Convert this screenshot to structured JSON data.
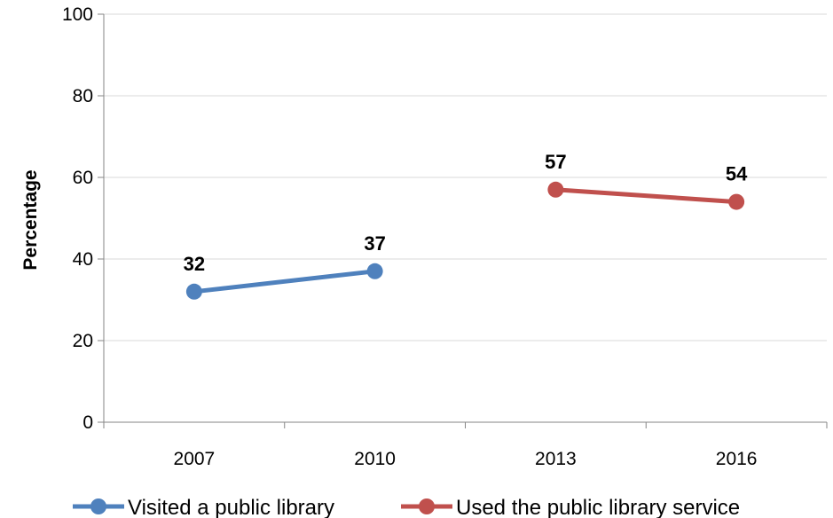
{
  "chart_data": {
    "type": "line",
    "categories": [
      "2007",
      "2010",
      "2013",
      "2016"
    ],
    "series": [
      {
        "name": "Visited a public library",
        "color": "#4f81bd",
        "values": [
          32,
          37,
          null,
          null
        ]
      },
      {
        "name": "Used the public library service",
        "color": "#c0504d",
        "values": [
          null,
          null,
          57,
          54
        ]
      }
    ],
    "ylabel": "Percentage",
    "ylim": [
      0,
      100
    ],
    "yticks": [
      0,
      20,
      40,
      60,
      80,
      100
    ],
    "grid": true,
    "legend": "bottom"
  }
}
